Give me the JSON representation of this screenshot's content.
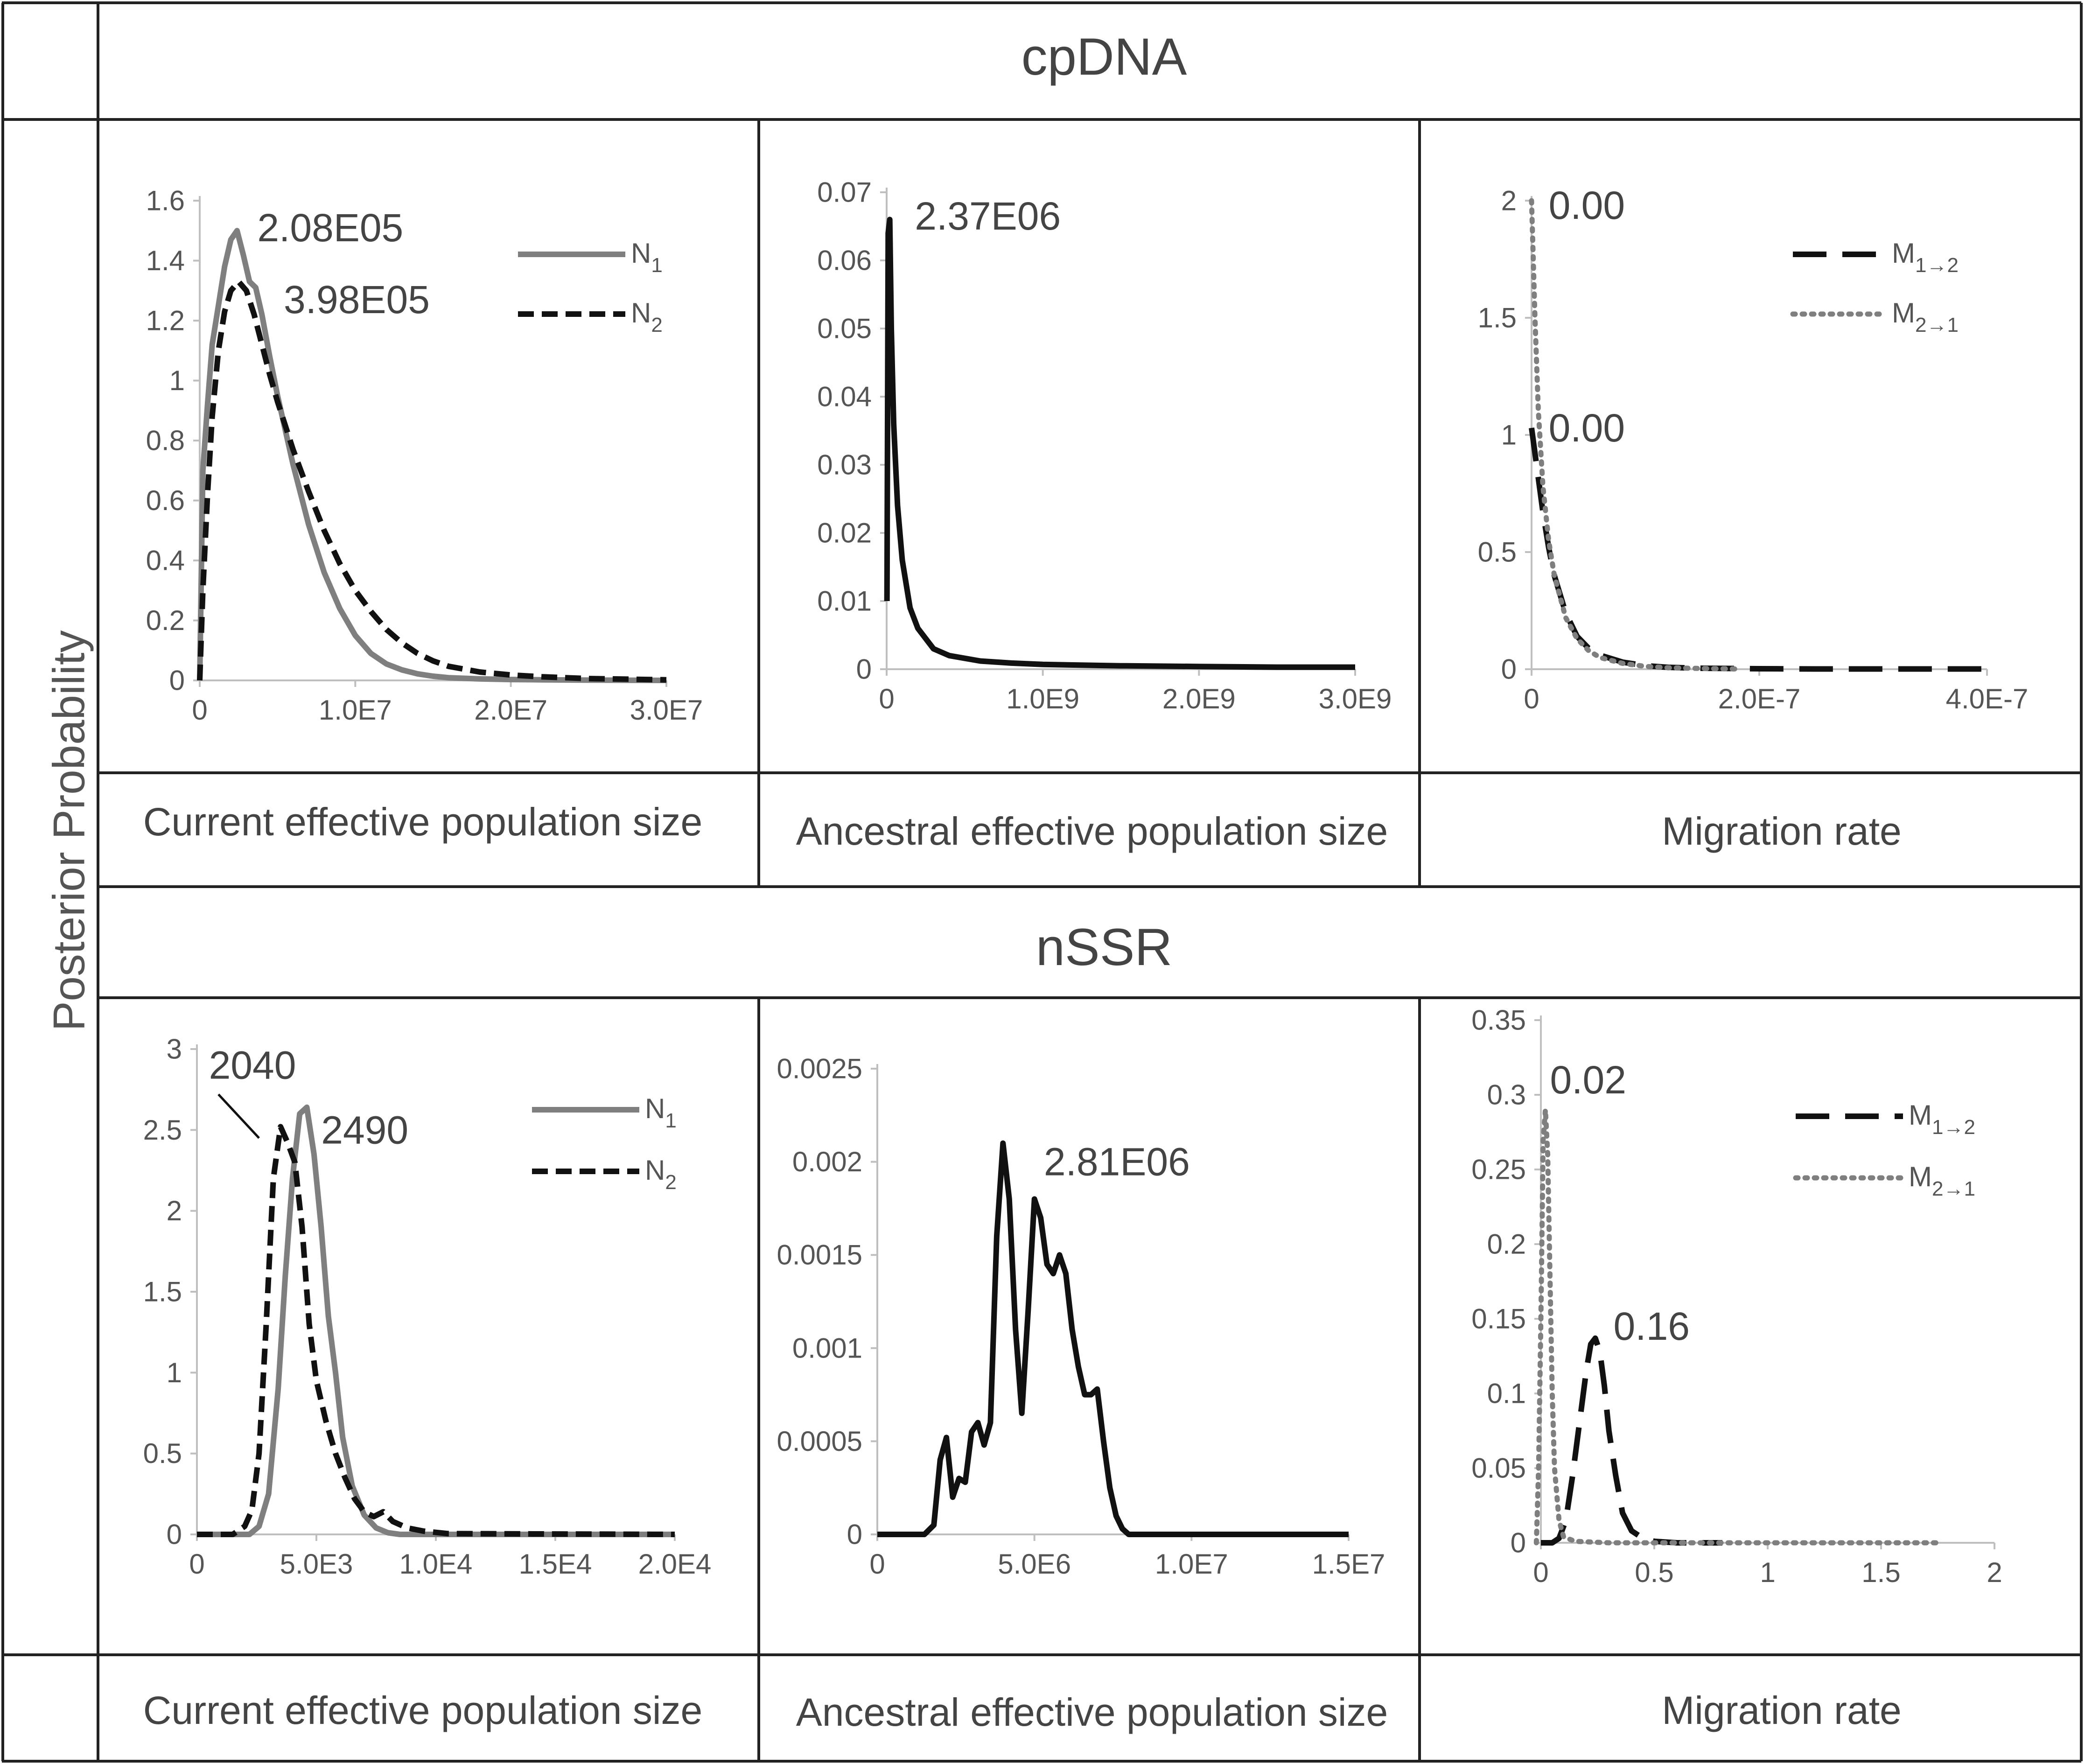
{
  "figure": {
    "y_axis_label": "Posterior Probability",
    "sections": [
      {
        "title": "cpDNA",
        "captions": [
          "Current effective population size",
          "Ancestral effective population size",
          "Migration rate"
        ]
      },
      {
        "title": "nSSR",
        "captions": [
          "Current effective population size",
          "Ancestral effective population size",
          "Migration rate"
        ]
      }
    ]
  },
  "colors": {
    "gray": "#7f7f7f",
    "black": "#111111",
    "axis": "#bfbfbf",
    "grid_line": "#222222",
    "text": "#444444"
  },
  "chart_data": [
    {
      "id": "cp1",
      "type": "line",
      "section": "cpDNA",
      "xlabel": "Current effective population size",
      "ylabel": "Posterior Probability",
      "xlim": [
        0,
        30000000
      ],
      "ylim": [
        0,
        1.6
      ],
      "xticks": [
        0,
        10000000,
        20000000,
        30000000
      ],
      "xtick_labels": [
        "0",
        "1.0E7",
        "2.0E7",
        "3.0E7"
      ],
      "yticks": [
        0,
        0.2,
        0.4,
        0.6,
        0.8,
        1,
        1.2,
        1.4,
        1.6
      ],
      "ytick_labels": [
        "0",
        "0.2",
        "0.4",
        "0.6",
        "0.8",
        "1",
        "1.2",
        "1.4",
        "1.6"
      ],
      "legend": "top-right",
      "series": [
        {
          "name": "N1",
          "legend_main": "N",
          "legend_sub": "1",
          "color": "gray",
          "style": "solid",
          "x": [
            0,
            200000,
            500000,
            800000,
            1200000,
            1600000,
            2000000,
            2400000,
            2800000,
            3200000,
            3600000,
            4000000,
            4500000,
            5000000,
            6000000,
            7000000,
            8000000,
            9000000,
            10000000,
            11000000,
            12000000,
            13000000,
            14000000,
            15000000,
            16000000,
            18000000,
            20000000,
            22000000,
            25000000,
            30000000
          ],
          "y": [
            0,
            0.7,
            0.92,
            1.12,
            1.25,
            1.38,
            1.47,
            1.5,
            1.42,
            1.33,
            1.31,
            1.22,
            1.08,
            0.95,
            0.72,
            0.52,
            0.36,
            0.24,
            0.15,
            0.09,
            0.055,
            0.035,
            0.022,
            0.014,
            0.009,
            0.005,
            0.003,
            0.002,
            0.001,
            0
          ]
        },
        {
          "name": "N2",
          "legend_main": "N",
          "legend_sub": "2",
          "color": "black",
          "style": "dashed",
          "x": [
            0,
            200000,
            500000,
            800000,
            1200000,
            1600000,
            2000000,
            2500000,
            3000000,
            3500000,
            4000000,
            4500000,
            5000000,
            6000000,
            7000000,
            8000000,
            9000000,
            10000000,
            11000000,
            12000000,
            13000000,
            14000000,
            15000000,
            16000000,
            18000000,
            20000000,
            22000000,
            25000000,
            30000000
          ],
          "y": [
            0,
            0.3,
            0.62,
            0.88,
            1.1,
            1.23,
            1.3,
            1.33,
            1.3,
            1.22,
            1.12,
            1.02,
            0.93,
            0.77,
            0.63,
            0.5,
            0.39,
            0.3,
            0.23,
            0.17,
            0.125,
            0.09,
            0.065,
            0.047,
            0.028,
            0.018,
            0.012,
            0.006,
            0.002
          ]
        }
      ],
      "annotations": [
        {
          "text": "2.08E05",
          "x": 3700000,
          "y": 1.51
        },
        {
          "text": "3.98E05",
          "x": 5400000,
          "y": 1.27
        }
      ]
    },
    {
      "id": "cp2",
      "type": "line",
      "section": "cpDNA",
      "xlabel": "Ancestral effective population size",
      "ylabel": "Posterior Probability",
      "xlim": [
        0,
        3000000000
      ],
      "ylim": [
        0,
        0.07
      ],
      "xticks": [
        0,
        1000000000,
        2000000000,
        3000000000
      ],
      "xtick_labels": [
        "0",
        "1.0E9",
        "2.0E9",
        "3.0E9"
      ],
      "yticks": [
        0,
        0.01,
        0.02,
        0.03,
        0.04,
        0.05,
        0.06,
        0.07
      ],
      "ytick_labels": [
        "0",
        "0.01",
        "0.02",
        "0.03",
        "0.04",
        "0.05",
        "0.06",
        "0.07"
      ],
      "series": [
        {
          "name": "Ancestral",
          "color": "black",
          "style": "solid",
          "x": [
            2000000,
            10000000,
            20000000,
            30000000,
            45000000,
            70000000,
            100000000,
            150000000,
            200000000,
            300000000,
            400000000,
            600000000,
            800000000,
            1000000000,
            1500000000,
            2000000000,
            2500000000,
            3000000000
          ],
          "y": [
            0.01,
            0.064,
            0.066,
            0.05,
            0.036,
            0.024,
            0.016,
            0.009,
            0.006,
            0.003,
            0.002,
            0.0012,
            0.0009,
            0.0007,
            0.0005,
            0.0004,
            0.0003,
            0.0003
          ]
        }
      ],
      "annotations": [
        {
          "text": "2.37E06",
          "x": 180000000,
          "y": 0.0665
        }
      ]
    },
    {
      "id": "cp3",
      "type": "line",
      "section": "cpDNA",
      "xlabel": "Migration rate",
      "ylabel": "Posterior Probability",
      "xlim": [
        0,
        4e-07
      ],
      "ylim": [
        0,
        2
      ],
      "xticks": [
        0,
        2e-07,
        4e-07
      ],
      "xtick_labels": [
        "0",
        "2.0E-7",
        "4.0E-7"
      ],
      "yticks": [
        0,
        0.5,
        1,
        1.5,
        2
      ],
      "ytick_labels": [
        "0",
        "0.5",
        "1",
        "1.5",
        "2"
      ],
      "legend": "top-right",
      "series": [
        {
          "name": "M1→2",
          "legend_main": "M",
          "legend_sub": "1→2",
          "color": "black",
          "style": "longdash",
          "x": [
            0,
            5e-09,
            1e-08,
            1.5e-08,
            2e-08,
            2.5e-08,
            3e-08,
            4e-08,
            5e-08,
            6e-08,
            8e-08,
            1e-07,
            1.2e-07,
            1.5e-07,
            2e-07,
            2.5e-07,
            3e-07,
            3.5e-07,
            4e-07
          ],
          "y": [
            1.03,
            0.85,
            0.67,
            0.52,
            0.4,
            0.32,
            0.24,
            0.14,
            0.09,
            0.06,
            0.03,
            0.015,
            0.008,
            0.004,
            0.002,
            0.001,
            0.001,
            0.001,
            0.001
          ]
        },
        {
          "name": "M2→1",
          "legend_main": "M",
          "legend_sub": "2→1",
          "color": "gray",
          "style": "dotted",
          "x": [
            0,
            3e-09,
            6e-09,
            1e-08,
            1.5e-08,
            2e-08,
            3e-08,
            4e-08,
            5e-08,
            6e-08,
            8e-08,
            1e-07,
            1.2e-07,
            1.5e-07,
            1.8e-07
          ],
          "y": [
            2.0,
            1.5,
            1.1,
            0.78,
            0.55,
            0.4,
            0.22,
            0.13,
            0.08,
            0.05,
            0.025,
            0.012,
            0.006,
            0.003,
            0.001
          ]
        }
      ],
      "annotations": [
        {
          "text": "0.00",
          "x": 1.5e-08,
          "y": 1.98
        },
        {
          "text": "0.00",
          "x": 1.5e-08,
          "y": 1.03
        }
      ]
    },
    {
      "id": "ns1",
      "type": "line",
      "section": "nSSR",
      "xlabel": "Current effective population size",
      "ylabel": "Posterior Probability",
      "xlim": [
        0,
        20000
      ],
      "ylim": [
        0,
        3
      ],
      "xticks": [
        0,
        5000,
        10000,
        15000,
        20000
      ],
      "xtick_labels": [
        "0",
        "5.0E3",
        "1.0E4",
        "1.5E4",
        "2.0E4"
      ],
      "yticks": [
        0,
        0.5,
        1,
        1.5,
        2,
        2.5,
        3
      ],
      "ytick_labels": [
        "0",
        "0.5",
        "1",
        "1.5",
        "2",
        "2.5",
        "3"
      ],
      "legend": "top-right",
      "series": [
        {
          "name": "N1",
          "legend_main": "N",
          "legend_sub": "1",
          "color": "gray",
          "style": "solid",
          "x": [
            0,
            2200,
            2600,
            3000,
            3400,
            3700,
            4000,
            4300,
            4600,
            4900,
            5200,
            5500,
            5800,
            6100,
            6500,
            7000,
            7500,
            8000,
            8500,
            9500,
            20000
          ],
          "y": [
            0,
            0,
            0.05,
            0.25,
            0.9,
            1.6,
            2.2,
            2.6,
            2.64,
            2.35,
            1.9,
            1.35,
            1.0,
            0.6,
            0.3,
            0.12,
            0.04,
            0.01,
            0,
            0,
            0
          ]
        },
        {
          "name": "N2",
          "legend_main": "N",
          "legend_sub": "2",
          "color": "black",
          "style": "dashed",
          "x": [
            0,
            1500,
            2000,
            2300,
            2600,
            2900,
            3200,
            3500,
            3800,
            4100,
            4400,
            4700,
            5000,
            5400,
            5800,
            6200,
            6600,
            7000,
            7400,
            7800,
            8200,
            8800,
            9500,
            10500,
            20000
          ],
          "y": [
            0,
            0,
            0.05,
            0.15,
            0.5,
            1.3,
            2.2,
            2.52,
            2.42,
            2.3,
            1.9,
            1.3,
            0.95,
            0.7,
            0.5,
            0.35,
            0.22,
            0.14,
            0.11,
            0.14,
            0.08,
            0.04,
            0.02,
            0.005,
            0
          ]
        }
      ],
      "annotations": [
        {
          "text": "2040",
          "x": 500,
          "y": 2.9
        },
        {
          "text": "2490",
          "x": 5200,
          "y": 2.5
        }
      ]
    },
    {
      "id": "ns2",
      "type": "line",
      "section": "nSSR",
      "xlabel": "Ancestral effective population size",
      "ylabel": "Posterior Probability",
      "xlim": [
        0,
        15000000
      ],
      "ylim": [
        0,
        0.0025
      ],
      "xticks": [
        0,
        5000000,
        10000000,
        15000000
      ],
      "xtick_labels": [
        "0",
        "5.0E6",
        "1.0E7",
        "1.5E7"
      ],
      "yticks": [
        0,
        0.0005,
        0.001,
        0.0015,
        0.002,
        0.0025
      ],
      "ytick_labels": [
        "0",
        "0.0005",
        "0.001",
        "0.0015",
        "0.002",
        "0.0025"
      ],
      "series": [
        {
          "name": "Ancestral",
          "color": "black",
          "style": "solid",
          "x": [
            0,
            1500000,
            1800000,
            2000000,
            2200000,
            2400000,
            2600000,
            2800000,
            3000000,
            3200000,
            3400000,
            3600000,
            3800000,
            4000000,
            4200000,
            4400000,
            4600000,
            4800000,
            5000000,
            5200000,
            5400000,
            5600000,
            5800000,
            6000000,
            6200000,
            6400000,
            6600000,
            6800000,
            7000000,
            7200000,
            7400000,
            7600000,
            7800000,
            8000000,
            8200000,
            15000000
          ],
          "y": [
            0,
            0,
            5e-05,
            0.0004,
            0.00052,
            0.0002,
            0.0003,
            0.00028,
            0.00055,
            0.0006,
            0.00048,
            0.0006,
            0.0016,
            0.0021,
            0.0018,
            0.0011,
            0.00065,
            0.0012,
            0.0018,
            0.0017,
            0.00145,
            0.0014,
            0.0015,
            0.0014,
            0.0011,
            0.0009,
            0.00075,
            0.00075,
            0.00078,
            0.0005,
            0.00025,
            0.0001,
            3e-05,
            0,
            0,
            0
          ]
        }
      ],
      "annotations": [
        {
          "text": "2.81E06",
          "x": 5300000,
          "y": 0.002
        }
      ]
    },
    {
      "id": "ns3",
      "type": "line",
      "section": "nSSR",
      "xlabel": "Migration rate",
      "ylabel": "Posterior Probability",
      "xlim": [
        0,
        2
      ],
      "ylim": [
        0,
        0.35
      ],
      "xticks": [
        0,
        0.5,
        1,
        1.5,
        2
      ],
      "xtick_labels": [
        "0",
        "0.5",
        "1",
        "1.5",
        "2"
      ],
      "yticks": [
        0,
        0.05,
        0.1,
        0.15,
        0.2,
        0.25,
        0.3,
        0.35
      ],
      "ytick_labels": [
        "0",
        "0.05",
        "0.1",
        "0.15",
        "0.2",
        "0.25",
        "0.3",
        "0.35"
      ],
      "legend": "top-right",
      "series": [
        {
          "name": "M1→2",
          "legend_main": "M",
          "legend_sub": "1→2",
          "color": "black",
          "style": "longdash",
          "x": [
            0,
            0.05,
            0.08,
            0.11,
            0.14,
            0.17,
            0.2,
            0.22,
            0.24,
            0.26,
            0.28,
            0.3,
            0.33,
            0.36,
            0.4,
            0.45,
            0.5,
            0.6,
            0.8
          ],
          "y": [
            0,
            0,
            0.003,
            0.015,
            0.045,
            0.08,
            0.115,
            0.133,
            0.137,
            0.128,
            0.105,
            0.075,
            0.045,
            0.02,
            0.008,
            0.003,
            0.001,
            0,
            0
          ]
        },
        {
          "name": "M2→1",
          "legend_main": "M",
          "legend_sub": "2→1",
          "color": "gray",
          "style": "dotted",
          "x": [
            -0.02,
            -0.01,
            0,
            0.01,
            0.02,
            0.03,
            0.04,
            0.05,
            0.06,
            0.08,
            0.1,
            0.15,
            0.3,
            1.0,
            1.75
          ],
          "y": [
            0,
            0.05,
            0.15,
            0.27,
            0.29,
            0.26,
            0.18,
            0.1,
            0.05,
            0.015,
            0.004,
            0.001,
            0,
            0,
            0
          ]
        }
      ],
      "annotations": [
        {
          "text": "0.02",
          "x": 0.04,
          "y": 0.31
        },
        {
          "text": "0.16",
          "x": 0.32,
          "y": 0.145
        }
      ]
    }
  ]
}
